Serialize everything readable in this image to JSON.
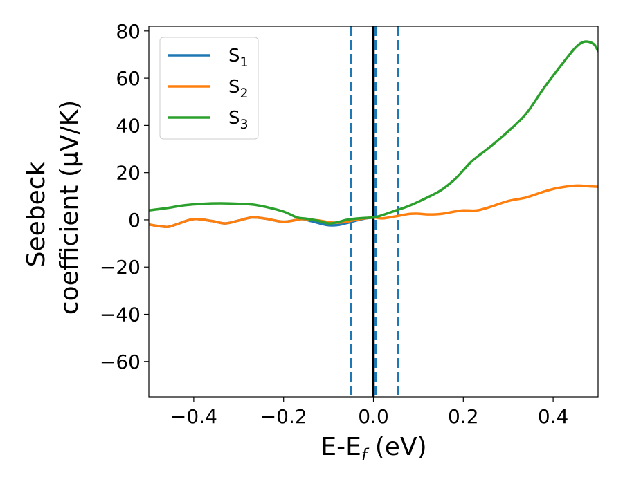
{
  "chart_data": {
    "type": "line",
    "title": "",
    "xlabel": "E-E_f (eV)",
    "xlabel_parts": {
      "main": "E-E",
      "sub": "f",
      "tail": " (eV)"
    },
    "ylabel_lines": [
      "Seebeck",
      "coefficient  (μV/K)"
    ],
    "xlim": [
      -0.5,
      0.5
    ],
    "ylim": [
      -75,
      82
    ],
    "x_ticks": [
      -0.4,
      -0.2,
      0.0,
      0.2,
      0.4
    ],
    "x_tick_labels": [
      "−0.4",
      "−0.2",
      "0.0",
      "0.2",
      "0.4"
    ],
    "y_ticks": [
      -60,
      -40,
      -20,
      0,
      20,
      40,
      60,
      80
    ],
    "y_tick_labels": [
      "−60",
      "−40",
      "−20",
      "0",
      "20",
      "40",
      "60",
      "80"
    ],
    "grid": false,
    "legend_position": "top-left",
    "vertical_lines": [
      {
        "x": 0.0,
        "style": "solid",
        "color": "#000000"
      },
      {
        "x": -0.05,
        "style": "dashed",
        "color": "#1f77b4"
      },
      {
        "x": 0.005,
        "style": "dashed",
        "color": "#1f77b4"
      },
      {
        "x": 0.055,
        "style": "dashed",
        "color": "#1f77b4"
      }
    ],
    "series": [
      {
        "name": "S",
        "subscript": "1",
        "color": "#1f77b4",
        "points": [
          [
            -0.5,
            -2.0
          ],
          [
            -0.46,
            -3.0
          ],
          [
            -0.44,
            -2.0
          ],
          [
            -0.4,
            0.3
          ],
          [
            -0.36,
            -0.5
          ],
          [
            -0.33,
            -1.5
          ],
          [
            -0.3,
            -0.3
          ],
          [
            -0.27,
            1.0
          ],
          [
            -0.24,
            0.5
          ],
          [
            -0.2,
            -0.8
          ],
          [
            -0.16,
            0.3
          ],
          [
            -0.14,
            -0.5
          ],
          [
            -0.12,
            -1.5
          ],
          [
            -0.1,
            -2.3
          ],
          [
            -0.08,
            -2.2
          ],
          [
            -0.06,
            -1.4
          ],
          [
            -0.04,
            -0.4
          ],
          [
            -0.02,
            0.5
          ],
          [
            0.0,
            1.0
          ]
        ]
      },
      {
        "name": "S",
        "subscript": "2",
        "color": "#ff7f0e",
        "points": [
          [
            -0.5,
            -2.0
          ],
          [
            -0.46,
            -3.0
          ],
          [
            -0.44,
            -2.0
          ],
          [
            -0.4,
            0.3
          ],
          [
            -0.36,
            -0.5
          ],
          [
            -0.33,
            -1.5
          ],
          [
            -0.3,
            -0.3
          ],
          [
            -0.27,
            1.0
          ],
          [
            -0.24,
            0.5
          ],
          [
            -0.2,
            -0.8
          ],
          [
            -0.16,
            0.3
          ],
          [
            -0.14,
            0.0
          ],
          [
            -0.12,
            -0.3
          ],
          [
            -0.1,
            -1.0
          ],
          [
            -0.08,
            -1.2
          ],
          [
            -0.06,
            -0.8
          ],
          [
            -0.04,
            0.0
          ],
          [
            -0.02,
            0.6
          ],
          [
            0.0,
            1.0
          ],
          [
            0.02,
            0.6
          ],
          [
            0.05,
            1.5
          ],
          [
            0.08,
            2.5
          ],
          [
            0.1,
            2.6
          ],
          [
            0.12,
            2.3
          ],
          [
            0.15,
            2.5
          ],
          [
            0.18,
            3.5
          ],
          [
            0.2,
            4.0
          ],
          [
            0.23,
            4.0
          ],
          [
            0.26,
            5.5
          ],
          [
            0.3,
            8.0
          ],
          [
            0.34,
            9.5
          ],
          [
            0.38,
            12.0
          ],
          [
            0.41,
            13.5
          ],
          [
            0.45,
            14.5
          ],
          [
            0.48,
            14.2
          ],
          [
            0.5,
            14.0
          ]
        ]
      },
      {
        "name": "S",
        "subscript": "3",
        "color": "#2ca02c",
        "points": [
          [
            -0.5,
            4.0
          ],
          [
            -0.46,
            5.0
          ],
          [
            -0.42,
            6.2
          ],
          [
            -0.38,
            6.8
          ],
          [
            -0.34,
            7.0
          ],
          [
            -0.3,
            6.8
          ],
          [
            -0.27,
            6.5
          ],
          [
            -0.24,
            5.5
          ],
          [
            -0.2,
            3.5
          ],
          [
            -0.17,
            1.0
          ],
          [
            -0.15,
            0.5
          ],
          [
            -0.12,
            -0.5
          ],
          [
            -0.1,
            -1.5
          ],
          [
            -0.08,
            -1.0
          ],
          [
            -0.06,
            0.0
          ],
          [
            -0.04,
            0.5
          ],
          [
            -0.02,
            0.8
          ],
          [
            0.0,
            1.0
          ],
          [
            0.02,
            2.0
          ],
          [
            0.05,
            4.0
          ],
          [
            0.08,
            6.0
          ],
          [
            0.12,
            9.5
          ],
          [
            0.15,
            12.5
          ],
          [
            0.18,
            17.0
          ],
          [
            0.2,
            21.0
          ],
          [
            0.22,
            25.0
          ],
          [
            0.26,
            31.0
          ],
          [
            0.3,
            37.5
          ],
          [
            0.34,
            45.0
          ],
          [
            0.38,
            56.0
          ],
          [
            0.42,
            66.0
          ],
          [
            0.45,
            73.0
          ],
          [
            0.47,
            75.5
          ],
          [
            0.49,
            74.5
          ],
          [
            0.5,
            71.5
          ]
        ]
      }
    ]
  }
}
